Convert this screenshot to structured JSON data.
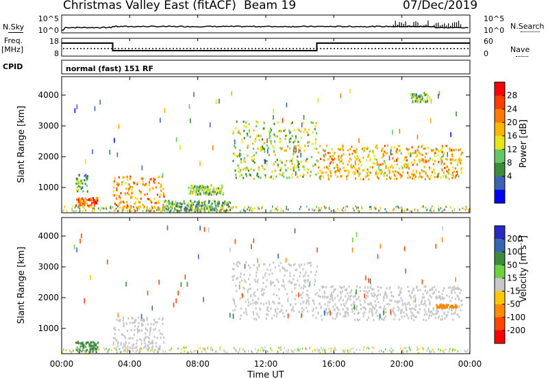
{
  "header": {
    "title": "Christmas Valley East (fitACF)",
    "beam": "Beam 19",
    "date": "07/Dec/2019"
  },
  "left_labels": {
    "nsky": "N.Sky",
    "freq": "Freq.",
    "freq_unit": "[MHz]",
    "cpid": "CPID"
  },
  "right_labels": {
    "nsearch": "N.Search",
    "nave": "Nave"
  },
  "cpid_text": "normal (fast) 151 RF",
  "noise_axis": {
    "left_ticks": [
      "10^5",
      "10^0"
    ],
    "right_ticks": [
      "10^5",
      "10^0"
    ]
  },
  "freq_axis": {
    "left_ticks": [
      "18",
      "8"
    ],
    "right_ticks": [
      "60",
      "0"
    ]
  },
  "colorbars": {
    "power": {
      "label": "Power [dB]",
      "ticks": [
        "28",
        "24",
        "20",
        "16",
        "12",
        "8",
        "4"
      ],
      "colors": [
        "#ff0000",
        "#ff3c00",
        "#ff7800",
        "#ffb400",
        "#e6e614",
        "#64c864",
        "#3c8c3c",
        "#3c64b4",
        "#0000ff"
      ]
    },
    "velocity": {
      "label": "Velocity [m s-1]",
      "label_main": "Velocity [m s",
      "label_sup": "-1",
      "label_end": "]",
      "ticks": [
        "200",
        "100",
        "50",
        "15",
        "-15",
        "-50",
        "-100",
        "-200"
      ],
      "colors": [
        "#2828c8",
        "#3c64b4",
        "#3c8c3c",
        "#6ed23c",
        "#c8c8c8",
        "#ffc800",
        "#ff8c00",
        "#ff4600",
        "#ff0000"
      ]
    }
  },
  "chart_data": [
    {
      "type": "heatmap",
      "title": "Power",
      "ylabel": "Slant Range [km]",
      "ylim": [
        180,
        4600
      ],
      "y_ticks": [
        "4000",
        "3000",
        "2000",
        "1000"
      ],
      "y_tick_values": [
        4000,
        3000,
        2000,
        1000
      ],
      "xlim_hours": [
        0,
        24
      ],
      "colorbar_label": "Power [dB]",
      "features": [
        {
          "t0": 0.8,
          "t1": 2.1,
          "r0": 420,
          "r1": 700,
          "power_db": 26
        },
        {
          "t0": 0.8,
          "t1": 1.5,
          "r0": 900,
          "r1": 1450,
          "power_db": 10
        },
        {
          "t0": 3.0,
          "t1": 6.0,
          "r0": 250,
          "r1": 1400,
          "power_db": 22
        },
        {
          "t0": 6.0,
          "t1": 9.9,
          "r0": 250,
          "r1": 600,
          "power_db": 10
        },
        {
          "t0": 7.4,
          "t1": 9.5,
          "r0": 800,
          "r1": 1100,
          "power_db": 12
        },
        {
          "t0": 10.0,
          "t1": 15.0,
          "r0": 1300,
          "r1": 3200,
          "power_db": 14
        },
        {
          "t0": 15.0,
          "t1": 23.5,
          "r0": 1300,
          "r1": 2400,
          "power_db": 20
        },
        {
          "t0": 20.5,
          "t1": 21.5,
          "r0": 3800,
          "r1": 4100,
          "power_db": 12
        }
      ]
    },
    {
      "type": "heatmap",
      "title": "Velocity",
      "ylabel": "Slant Range [km]",
      "ylim": [
        180,
        4600
      ],
      "y_ticks": [
        "4000",
        "3000",
        "2000",
        "1000"
      ],
      "y_tick_values": [
        4000,
        3000,
        2000,
        1000
      ],
      "xlim_hours": [
        0,
        24
      ],
      "colorbar_label": "Velocity [m s-1]",
      "features": [
        {
          "t0": 0.8,
          "t1": 2.1,
          "r0": 250,
          "r1": 600,
          "velocity": 40
        },
        {
          "t0": 3.0,
          "t1": 6.0,
          "r0": 250,
          "r1": 1400,
          "velocity": 0
        },
        {
          "t0": 10.0,
          "t1": 15.0,
          "r0": 1300,
          "r1": 3200,
          "velocity": 0
        },
        {
          "t0": 15.0,
          "t1": 23.5,
          "r0": 1300,
          "r1": 2400,
          "velocity": 0
        },
        {
          "t0": 22.0,
          "t1": 23.2,
          "r0": 1700,
          "r1": 1800,
          "velocity": -40
        }
      ]
    }
  ],
  "x_axis": {
    "label": "Time UT",
    "ticks": [
      "00:00",
      "04:00",
      "08:00",
      "12:00",
      "16:00",
      "20:00",
      "00:00"
    ],
    "tick_hours": [
      0,
      4,
      8,
      12,
      16,
      20,
      24
    ]
  },
  "frequency_trace": [
    {
      "t0": 0,
      "t1": 3.0,
      "level": "high"
    },
    {
      "t0": 3.0,
      "t1": 15.0,
      "level": "low"
    },
    {
      "t0": 15.0,
      "t1": 24,
      "level": "high"
    }
  ]
}
